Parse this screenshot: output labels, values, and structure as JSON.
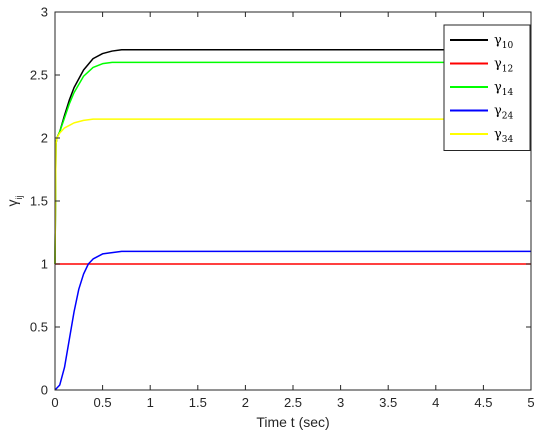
{
  "chart_data": {
    "type": "line",
    "xlabel": "Time t (sec)",
    "ylabel_main": "γ",
    "ylabel_sub": "ij",
    "xlim": [
      0,
      5
    ],
    "ylim": [
      0,
      3
    ],
    "xticks": [
      "0",
      "0.5",
      "1",
      "1.5",
      "2",
      "2.5",
      "3",
      "3.5",
      "4",
      "4.5",
      "5"
    ],
    "yticks": [
      "0",
      "0.5",
      "1",
      "1.5",
      "2",
      "2.5",
      "3"
    ],
    "grid": false,
    "legend_position": "top-right",
    "series": [
      {
        "name_main": "γ",
        "name_sub": "10",
        "color": "#000000",
        "x": [
          0,
          0.01,
          0.02,
          0.05,
          0.1,
          0.15,
          0.2,
          0.3,
          0.4,
          0.5,
          0.6,
          0.7,
          0.8,
          1.0,
          1.5,
          2,
          3,
          4,
          5
        ],
        "y": [
          1.0,
          1.95,
          2.0,
          2.05,
          2.18,
          2.3,
          2.4,
          2.54,
          2.63,
          2.67,
          2.69,
          2.7,
          2.7,
          2.7,
          2.7,
          2.7,
          2.7,
          2.7,
          2.7
        ]
      },
      {
        "name_main": "γ",
        "name_sub": "12",
        "color": "#ff0000",
        "x": [
          0,
          1,
          2,
          3,
          4,
          5
        ],
        "y": [
          1.0,
          1.0,
          1.0,
          1.0,
          1.0,
          1.0
        ]
      },
      {
        "name_main": "γ",
        "name_sub": "14",
        "color": "#00ff00",
        "x": [
          0,
          0.01,
          0.02,
          0.05,
          0.1,
          0.15,
          0.2,
          0.3,
          0.4,
          0.5,
          0.6,
          0.7,
          0.8,
          1.0,
          1.5,
          2,
          3,
          4,
          5
        ],
        "y": [
          1.0,
          1.95,
          2.0,
          2.05,
          2.16,
          2.27,
          2.36,
          2.49,
          2.56,
          2.59,
          2.6,
          2.6,
          2.6,
          2.6,
          2.6,
          2.6,
          2.6,
          2.6,
          2.6
        ]
      },
      {
        "name_main": "γ",
        "name_sub": "24",
        "color": "#0000ff",
        "x": [
          0,
          0.05,
          0.1,
          0.15,
          0.2,
          0.25,
          0.3,
          0.35,
          0.4,
          0.5,
          0.6,
          0.7,
          0.8,
          1.0,
          1.5,
          2,
          3,
          4,
          5
        ],
        "y": [
          0.0,
          0.04,
          0.18,
          0.4,
          0.62,
          0.8,
          0.92,
          1.0,
          1.04,
          1.08,
          1.09,
          1.1,
          1.1,
          1.1,
          1.1,
          1.1,
          1.1,
          1.1,
          1.1
        ]
      },
      {
        "name_main": "γ",
        "name_sub": "34",
        "color": "#ffff00",
        "x": [
          0,
          0.01,
          0.02,
          0.05,
          0.1,
          0.15,
          0.2,
          0.3,
          0.4,
          0.5,
          0.6,
          0.8,
          1.0,
          1.5,
          2,
          3,
          4,
          5
        ],
        "y": [
          1.0,
          1.95,
          2.0,
          2.04,
          2.08,
          2.1,
          2.12,
          2.14,
          2.15,
          2.15,
          2.15,
          2.15,
          2.15,
          2.15,
          2.15,
          2.15,
          2.15,
          2.15
        ]
      }
    ]
  }
}
